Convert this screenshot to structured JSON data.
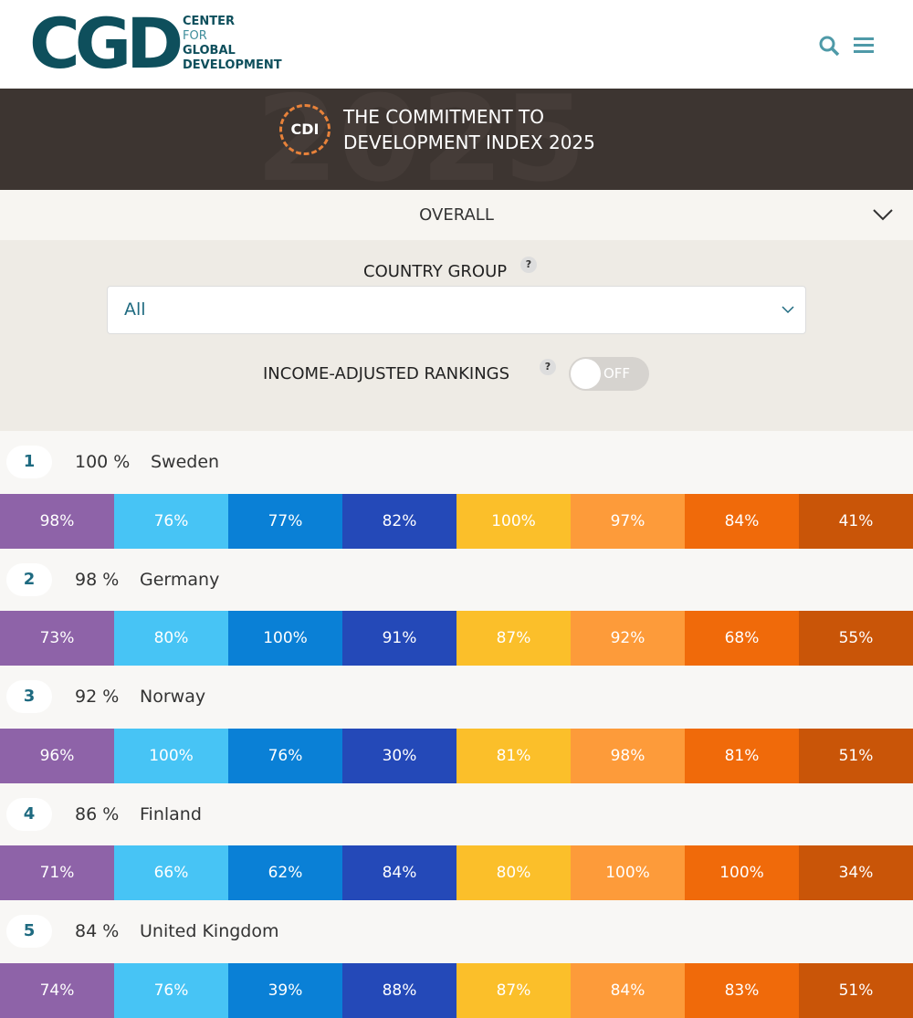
{
  "header": {
    "logo": "CGD",
    "org_name": [
      "CENTER",
      "FOR",
      "GLOBAL",
      "DEVELOPMENT"
    ]
  },
  "banner": {
    "watermark": "2025",
    "badge": "CDI",
    "title": [
      "THE COMMITMENT TO",
      "DEVELOPMENT INDEX 2025"
    ]
  },
  "view_select": {
    "label": "OVERALL"
  },
  "filters": {
    "country_group_label": "COUNTRY GROUP",
    "country_group_help": "?",
    "country_group_value": "All",
    "income_label": "INCOME-ADJUSTED RANKINGS",
    "income_help": "?",
    "income_toggle": "OFF"
  },
  "rankings": [
    {
      "rank": "1",
      "score": "100 %",
      "country": "Sweden",
      "components": [
        "98%",
        "76%",
        "77%",
        "82%",
        "100%",
        "97%",
        "84%",
        "41%"
      ]
    },
    {
      "rank": "2",
      "score": "98 %",
      "country": "Germany",
      "components": [
        "73%",
        "80%",
        "100%",
        "91%",
        "87%",
        "92%",
        "68%",
        "55%"
      ]
    },
    {
      "rank": "3",
      "score": "92 %",
      "country": "Norway",
      "components": [
        "96%",
        "100%",
        "76%",
        "30%",
        "81%",
        "98%",
        "81%",
        "51%"
      ]
    },
    {
      "rank": "4",
      "score": "86 %",
      "country": "Finland",
      "components": [
        "71%",
        "66%",
        "62%",
        "84%",
        "80%",
        "100%",
        "100%",
        "34%"
      ]
    },
    {
      "rank": "5",
      "score": "84 %",
      "country": "United Kingdom",
      "components": [
        "74%",
        "76%",
        "39%",
        "88%",
        "87%",
        "84%",
        "83%",
        "51%"
      ]
    }
  ]
}
